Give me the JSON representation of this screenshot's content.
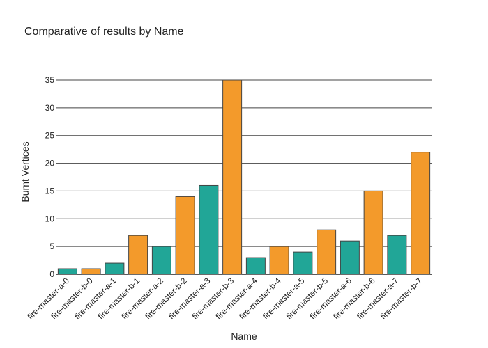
{
  "chart_data": {
    "type": "bar",
    "title": "Comparative of results by Name",
    "xlabel": "Name",
    "ylabel": "Burnt Vertices",
    "ylim": [
      0,
      35
    ],
    "yticks": [
      0,
      5,
      10,
      15,
      20,
      25,
      30,
      35
    ],
    "grid": true,
    "categories": [
      "fire-master-a-0",
      "fire-master-b-0",
      "fire-master-a-1",
      "fire-master-b-1",
      "fire-master-a-2",
      "fire-master-b-2",
      "fire-master-a-3",
      "fire-master-b-3",
      "fire-master-a-4",
      "fire-master-b-4",
      "fire-master-a-5",
      "fire-master-b-5",
      "fire-master-a-6",
      "fire-master-b-6",
      "fire-master-a-7",
      "fire-master-b-7"
    ],
    "values": [
      1,
      1,
      2,
      7,
      5,
      14,
      16,
      35,
      3,
      5,
      4,
      8,
      6,
      15,
      7,
      22
    ],
    "colors": {
      "a": "#21a697",
      "b": "#f39a2b"
    }
  }
}
